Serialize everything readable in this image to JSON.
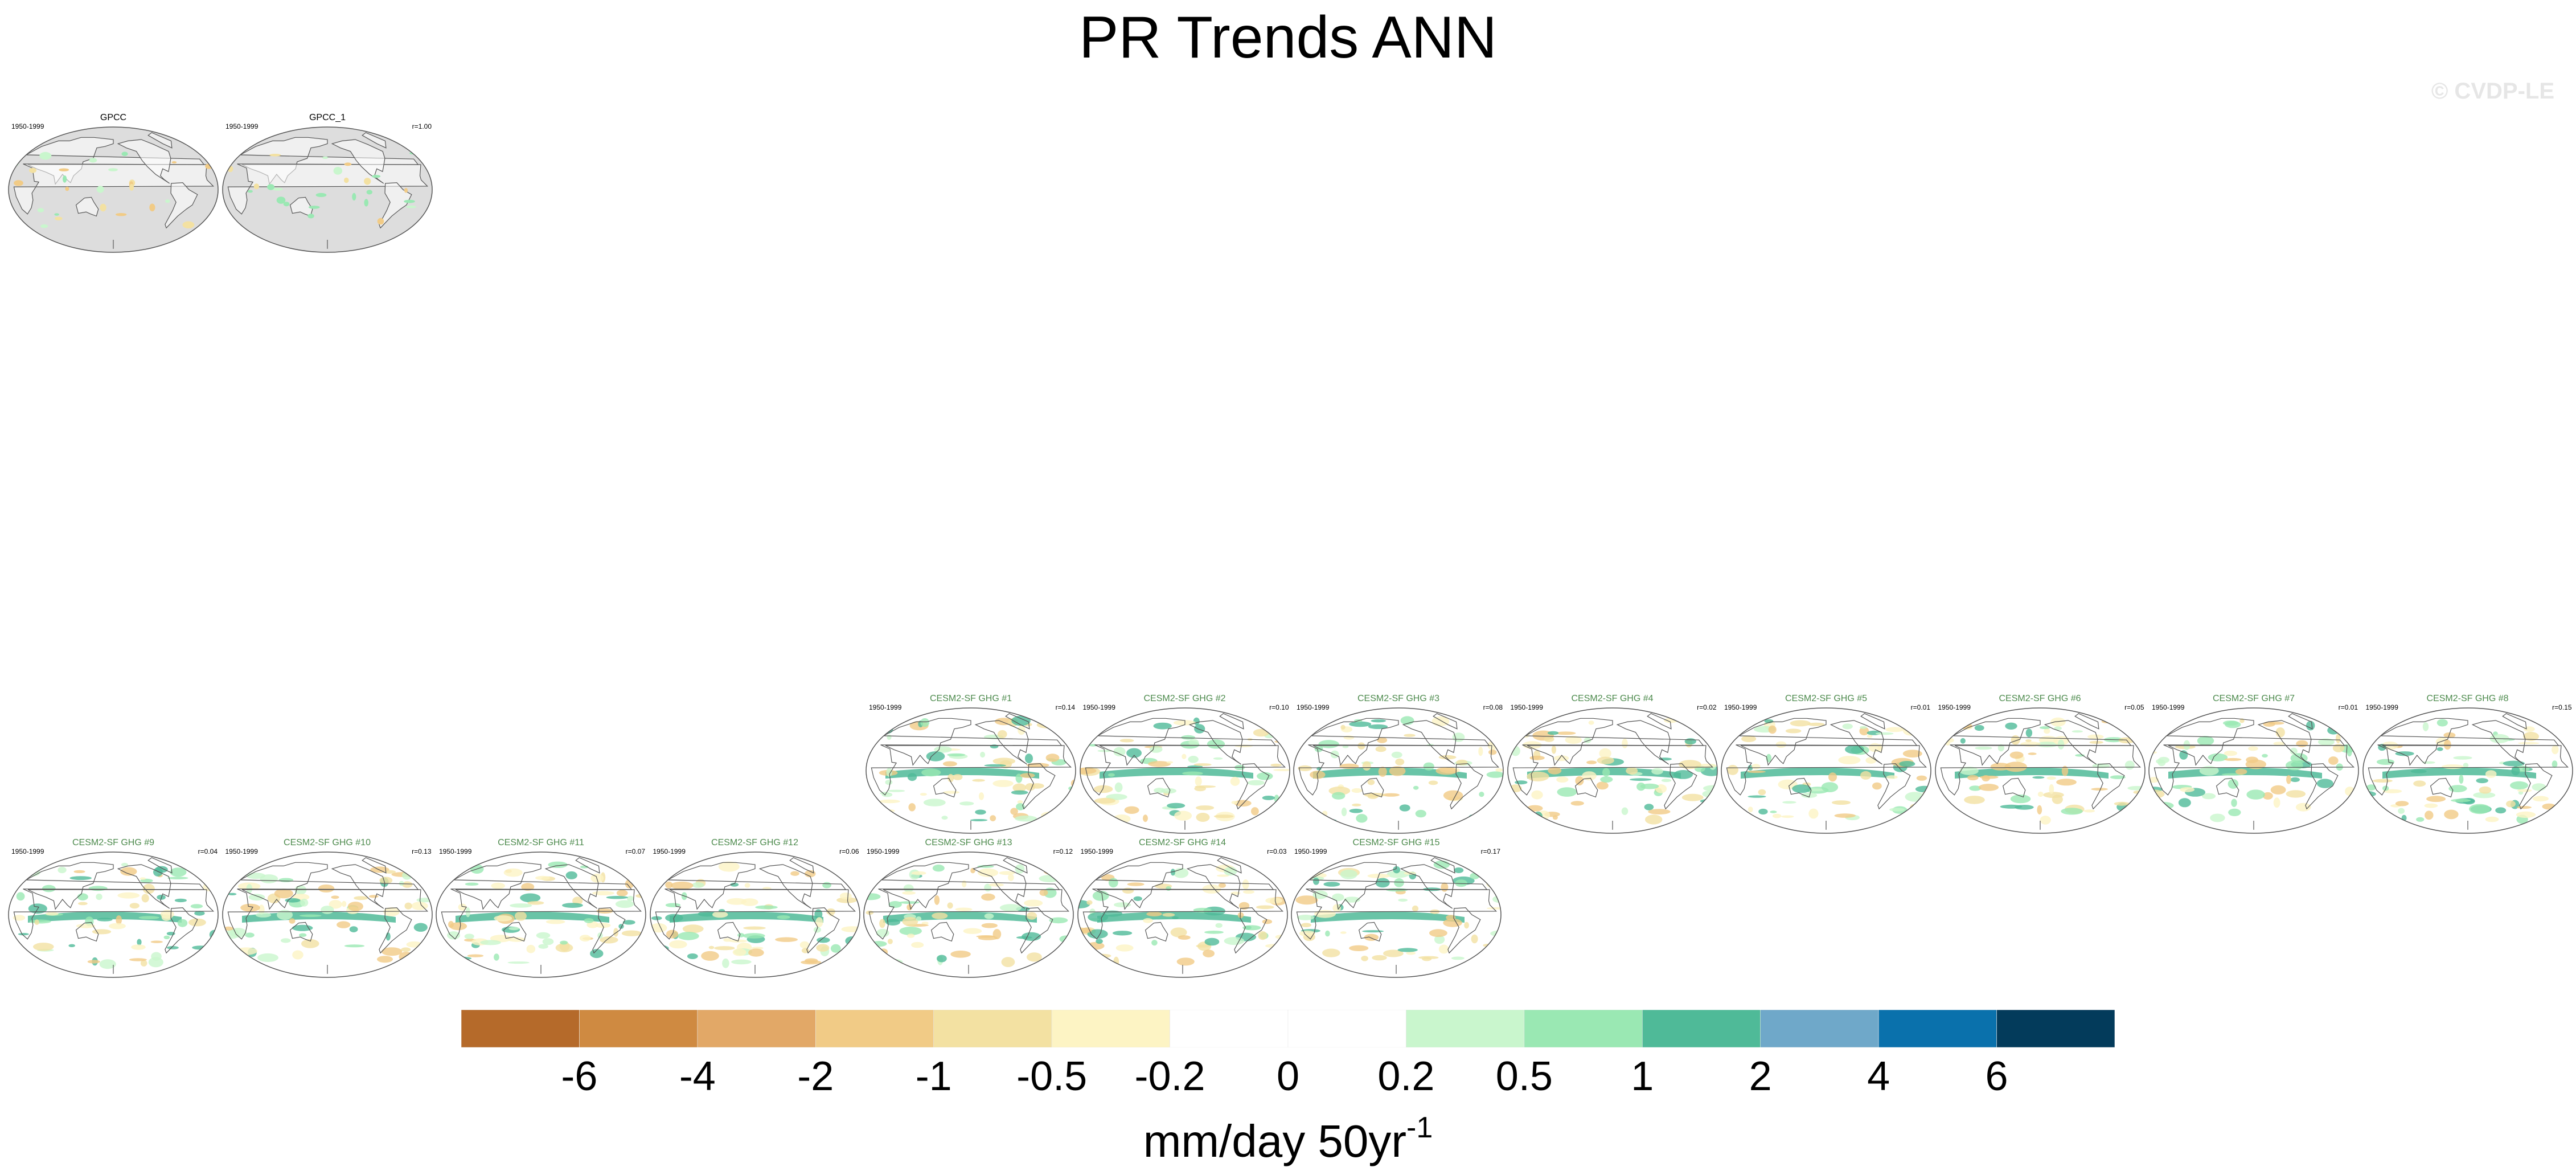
{
  "title": "PR Trends ANN",
  "watermark": "© CVDP-LE",
  "observations": [
    {
      "name": "GPCC",
      "period": "1950-1999",
      "r": ""
    },
    {
      "name": "GPCC_1",
      "period": "1950-1999",
      "r": "r=1.00"
    }
  ],
  "members": [
    {
      "name": "CESM2-SF GHG #1",
      "period": "1950-1999",
      "r": "r=0.14"
    },
    {
      "name": "CESM2-SF GHG #2",
      "period": "1950-1999",
      "r": "r=0.10"
    },
    {
      "name": "CESM2-SF GHG #3",
      "period": "1950-1999",
      "r": "r=0.08"
    },
    {
      "name": "CESM2-SF GHG #4",
      "period": "1950-1999",
      "r": "r=0.02"
    },
    {
      "name": "CESM2-SF GHG #5",
      "period": "1950-1999",
      "r": "r=0.01"
    },
    {
      "name": "CESM2-SF GHG #6",
      "period": "1950-1999",
      "r": "r=0.05"
    },
    {
      "name": "CESM2-SF GHG #7",
      "period": "1950-1999",
      "r": "r=0.01"
    },
    {
      "name": "CESM2-SF GHG #8",
      "period": "1950-1999",
      "r": "r=0.15"
    },
    {
      "name": "CESM2-SF GHG #9",
      "period": "1950-1999",
      "r": "r=0.04"
    },
    {
      "name": "CESM2-SF GHG #10",
      "period": "1950-1999",
      "r": "r=0.13"
    },
    {
      "name": "CESM2-SF GHG #11",
      "period": "1950-1999",
      "r": "r=0.07"
    },
    {
      "name": "CESM2-SF GHG #12",
      "period": "1950-1999",
      "r": "r=0.06"
    },
    {
      "name": "CESM2-SF GHG #13",
      "period": "1950-1999",
      "r": "r=0.12"
    },
    {
      "name": "CESM2-SF GHG #14",
      "period": "1950-1999",
      "r": "r=0.03"
    },
    {
      "name": "CESM2-SF GHG #15",
      "period": "1950-1999",
      "r": "r=0.17"
    }
  ],
  "colorbar": {
    "colors": [
      "#b56a2a",
      "#cf8a41",
      "#e2a867",
      "#f1cb86",
      "#f3e1a2",
      "#fdf4c4",
      "#ffffff",
      "#ffffff",
      "#c9f6cd",
      "#9ae8b3",
      "#4fba98",
      "#6fa8c9",
      "#0a71ac",
      "#033b5b"
    ],
    "ticks": [
      "-6",
      "-4",
      "-2",
      "-1",
      "-0.5",
      "-0.2",
      "0",
      "0.2",
      "0.5",
      "1",
      "2",
      "4",
      "6"
    ],
    "units_base": "mm/day 50yr",
    "units_sup": "-1"
  }
}
